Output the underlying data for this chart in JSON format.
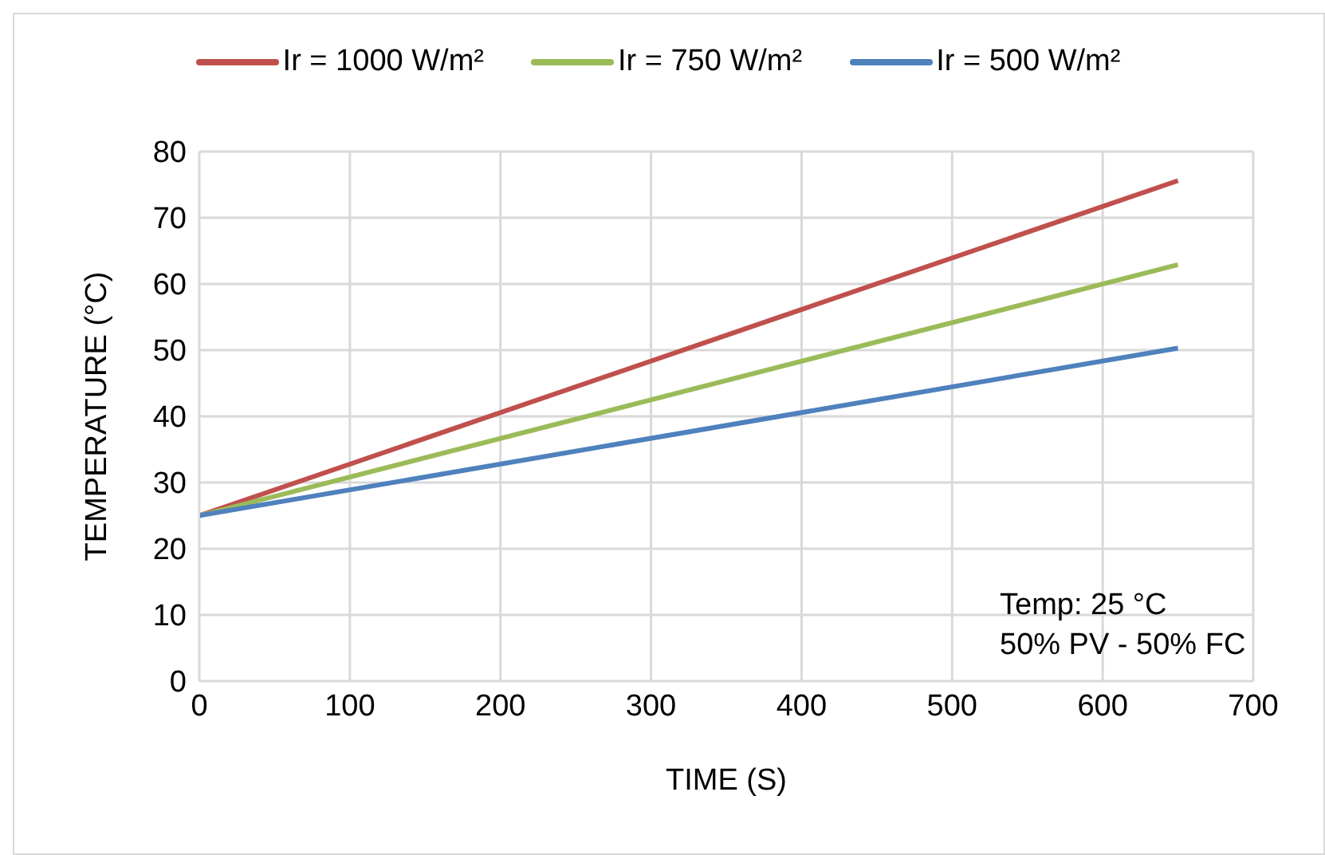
{
  "chart_data": {
    "type": "line",
    "xlabel": "TIME (S)",
    "ylabel": "TEMPERATURE (°C)",
    "x": [
      0,
      650
    ],
    "series": [
      {
        "name": "Ir = 1000 W/m²",
        "color": "#c0504d",
        "values": [
          25,
          75.6
        ]
      },
      {
        "name": "Ir = 750 W/m²",
        "color": "#9bbb59",
        "values": [
          25,
          62.9
        ]
      },
      {
        "name": "Ir = 500 W/m²",
        "color": "#4f81bd",
        "values": [
          25,
          50.3
        ]
      }
    ],
    "xlim": [
      0,
      700
    ],
    "xticks": [
      0,
      100,
      200,
      300,
      400,
      500,
      600,
      700
    ],
    "ylim": [
      0,
      80
    ],
    "yticks": [
      0,
      10,
      20,
      30,
      40,
      50,
      60,
      70,
      80
    ],
    "grid": true,
    "legend": "top",
    "marker": "none",
    "line_style": "solid",
    "annotations": [
      "Temp: 25 °C",
      "50% PV - 50% FC"
    ]
  }
}
